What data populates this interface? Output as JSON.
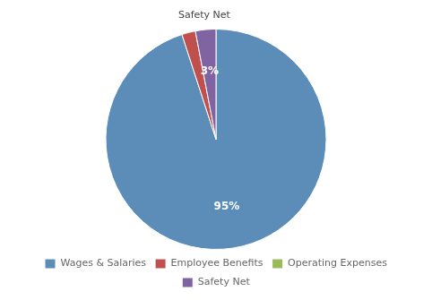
{
  "chart_data": {
    "type": "pie",
    "categories": [
      "Wages & Salaries",
      "Employee Benefits",
      "Operating Expenses",
      "Safety Net"
    ],
    "values": [
      95,
      2,
      0,
      3
    ],
    "colors": [
      "#5B8DB8",
      "#C0504D",
      "#9BBB59",
      "#8064A2"
    ],
    "data_labels": true,
    "value_labels": [
      "95%",
      null,
      null,
      "3%"
    ],
    "annotations": [
      {
        "text": "Safety Net",
        "category": "Safety Net"
      }
    ],
    "legend": "bottom"
  }
}
